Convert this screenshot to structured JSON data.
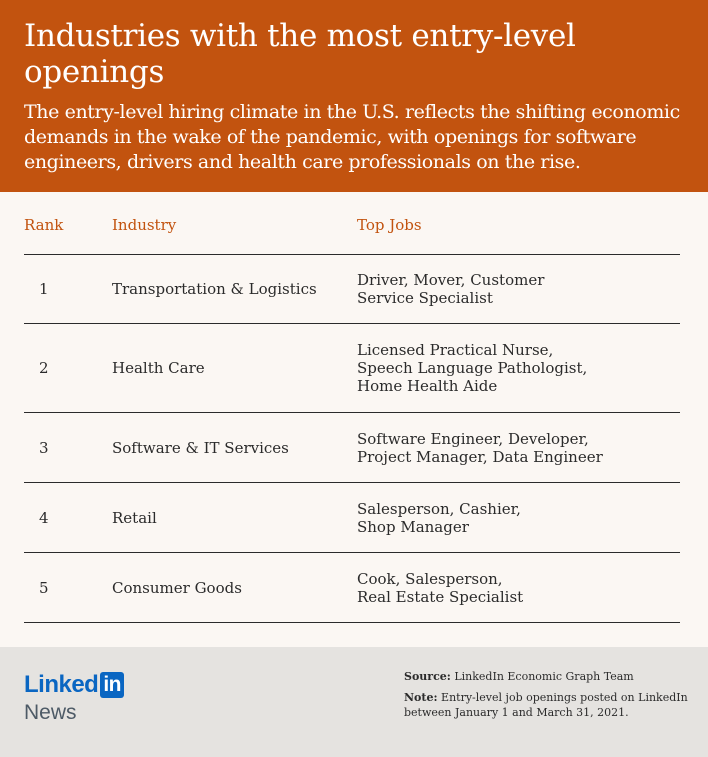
{
  "header": {
    "title": "Industries with the most entry-level openings",
    "subtitle": "The entry-level hiring climate in the U.S. reflects the shifting economic demands in the wake of the pandemic, with openings for software engineers, drivers and health care professionals on the rise."
  },
  "chart_data": {
    "type": "table",
    "columns": [
      "Rank",
      "Industry",
      "Top Jobs"
    ],
    "rows": [
      {
        "rank": "1",
        "industry": "Transportation & Logistics",
        "jobs": [
          "Driver, Mover, Customer",
          "Service Specialist"
        ]
      },
      {
        "rank": "2",
        "industry": "Health Care",
        "jobs": [
          "Licensed Practical Nurse,",
          "Speech Language Pathologist,",
          "Home Health Aide"
        ]
      },
      {
        "rank": "3",
        "industry": "Software & IT Services",
        "jobs": [
          "Software Engineer, Developer,",
          "Project Manager, Data Engineer"
        ]
      },
      {
        "rank": "4",
        "industry": "Retail",
        "jobs": [
          "Salesperson, Cashier,",
          "Shop Manager"
        ]
      },
      {
        "rank": "5",
        "industry": "Consumer Goods",
        "jobs": [
          "Cook, Salesperson,",
          "Real Estate Specialist"
        ]
      }
    ]
  },
  "footer": {
    "logo_word": "Linked",
    "logo_box": "in",
    "logo_sub": "News",
    "source_label": "Source:",
    "source_text": "LinkedIn Economic Graph Team",
    "note_label": "Note:",
    "note_text": "Entry-level job openings posted on LinkedIn between January 1 and March 31, 2021."
  },
  "colors": {
    "header_bg": "#c2530f",
    "accent_text": "#c2530f",
    "page_bg": "#fbf7f3",
    "footer_bg": "#e5e3e0",
    "linkedin_blue": "#0a66c2"
  }
}
